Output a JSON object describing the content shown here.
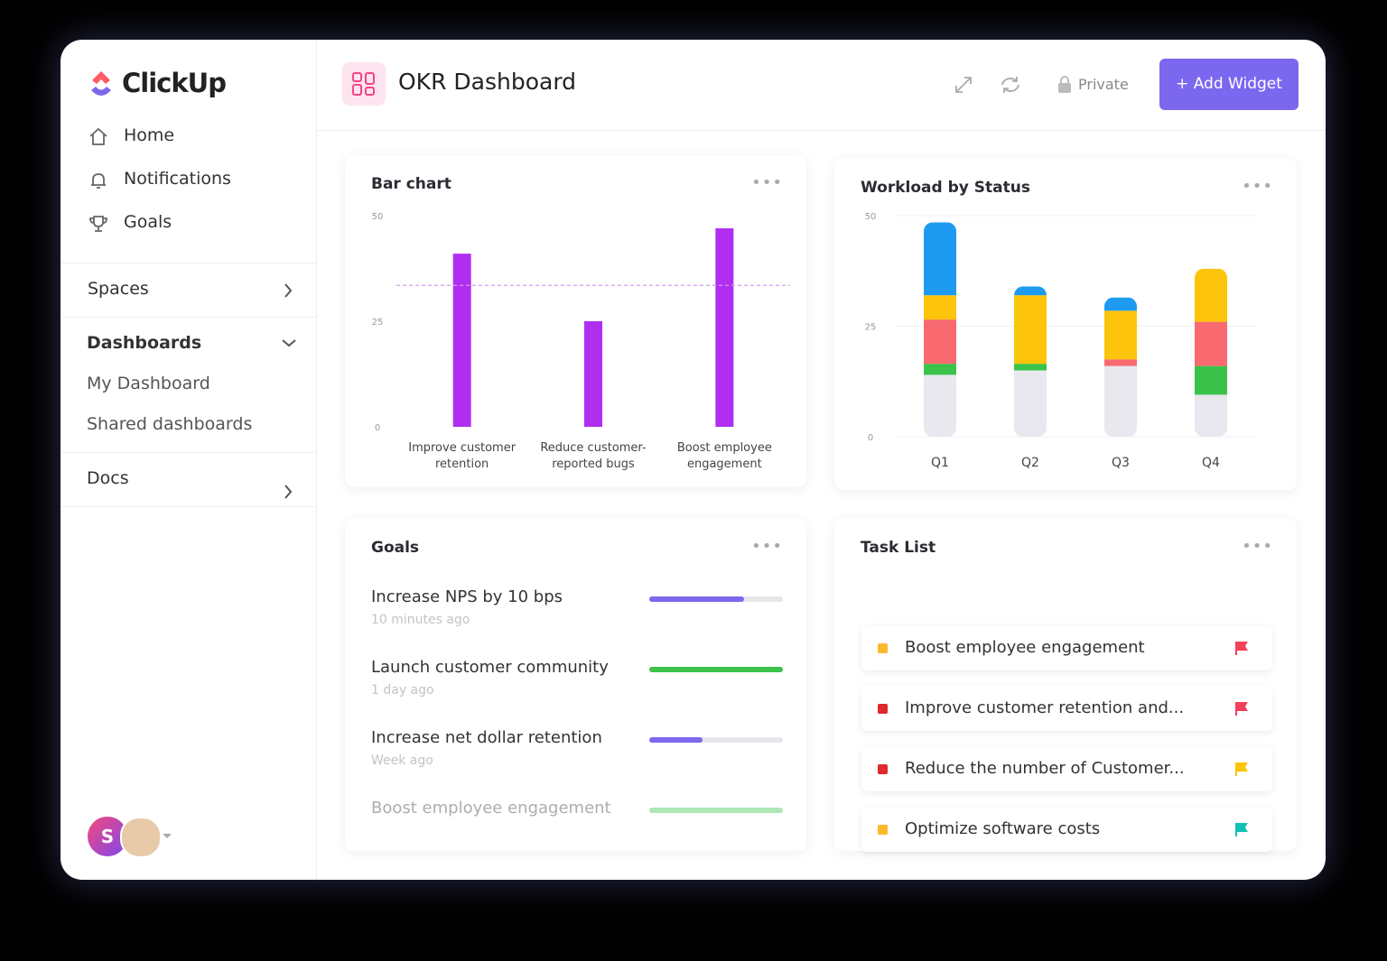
{
  "app": {
    "brand": "ClickUp",
    "user_initial": "S"
  },
  "sidebar": {
    "nav": [
      "Home",
      "Notifications",
      "Goals"
    ],
    "spaces": "Spaces",
    "dashboards": {
      "title": "Dashboards",
      "items": [
        "My Dashboard",
        "Shared dashboards"
      ]
    },
    "docs": "Docs"
  },
  "header": {
    "title": "OKR Dashboard",
    "privacy": "Private",
    "button": "+ Add Widget"
  },
  "chart_data": [
    {
      "type": "bar",
      "title": "Bar chart",
      "categories": [
        "Improve customer retention",
        "Reduce customer-reported bugs",
        "Boost employee engagement"
      ],
      "values": [
        41,
        25,
        47
      ],
      "color": "#b02ef0",
      "target_line": 33.5,
      "target_color": "#d59be8",
      "ylim": [
        0,
        50
      ],
      "yticks": [
        0,
        25,
        50
      ],
      "grid": false
    },
    {
      "type": "stacked_bar",
      "title": "Workload by Status",
      "categories": [
        "Q1",
        "Q2",
        "Q3",
        "Q4"
      ],
      "series": [
        {
          "color": "#e8e8ee",
          "values": [
            14,
            15,
            16,
            9.5
          ]
        },
        {
          "color": "#3ac24a",
          "values": [
            2.5,
            1.5,
            0,
            6.5
          ]
        },
        {
          "color": "#f86a70",
          "values": [
            10,
            0,
            1.5,
            10
          ]
        },
        {
          "color": "#fcc40b",
          "values": [
            5.5,
            15.5,
            11,
            12
          ]
        },
        {
          "color": "#1e9bf0",
          "values": [
            16.5,
            2,
            3,
            0
          ]
        }
      ],
      "ylim": [
        0,
        50
      ],
      "yticks": [
        0,
        25,
        50
      ],
      "grid": true
    }
  ],
  "goals": {
    "title": "Goals",
    "items": [
      {
        "name": "Increase NPS by 10 bps",
        "time": "10 minutes ago",
        "progress": 71,
        "color": "#7b68ee"
      },
      {
        "name": "Launch customer community",
        "time": "1 day ago",
        "progress": 100,
        "color": "#3ac24a"
      },
      {
        "name": "Increase net dollar retention",
        "time": "Week ago",
        "progress": 40,
        "color": "#7b68ee"
      },
      {
        "name": "Boost employee engagement",
        "progress": 100,
        "color": "#3ac24a"
      }
    ]
  },
  "tasks": {
    "title": "Task List",
    "items": [
      {
        "name": "Boost employee engagement",
        "status_color": "#fcb92b",
        "flag_color": "#f2415a"
      },
      {
        "name": "Improve customer retention and...",
        "status_color": "#e0282e",
        "flag_color": "#f2415a"
      },
      {
        "name": "Reduce the number of Customer...",
        "status_color": "#e0282e",
        "flag_color": "#fcc40b"
      },
      {
        "name": "Optimize software costs",
        "status_color": "#fcb92b",
        "flag_color": "#12c1b5"
      }
    ]
  }
}
